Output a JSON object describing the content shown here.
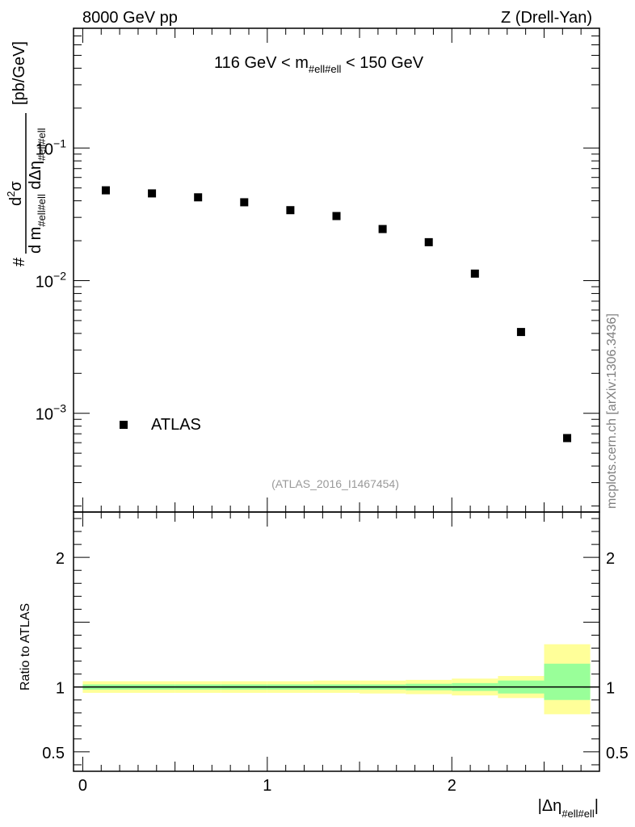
{
  "header": {
    "left": "8000 GeV pp",
    "right": "Z (Drell-Yan)"
  },
  "side_label": "mcplots.cern.ch [arXiv:1306.3436]",
  "analysis_tag": "(ATLAS_2016_I1467454)",
  "chart_data": [
    {
      "type": "scatter",
      "title": {
        "pre": "116 GeV < m",
        "sub": "#ell#ell",
        "post": " < 150 GeV"
      },
      "ylabel": {
        "hash": "#",
        "num": "d",
        "num_sup": "2",
        "num_sigma": "σ",
        "den_d": "d m",
        "den_sub": "#ell#ell",
        "den_deta": " dΔη",
        "den_eta_sub": "#ell#ell",
        "unit": "[pb/GeV]"
      },
      "yscale": "log",
      "ylim": [
        0.00018,
        0.8
      ],
      "xlim": [
        -0.05,
        2.8
      ],
      "y_ticks": [
        {
          "value": 0.1,
          "base": "10",
          "exp": "−1"
        },
        {
          "value": 0.01,
          "base": "10",
          "exp": "−2"
        },
        {
          "value": 0.001,
          "base": "10",
          "exp": "−3"
        }
      ],
      "series": [
        {
          "name": "ATLAS",
          "color": "#000000",
          "x": [
            0.125,
            0.375,
            0.625,
            0.875,
            1.125,
            1.375,
            1.625,
            1.875,
            2.125,
            2.375,
            2.625
          ],
          "y": [
            0.048,
            0.0455,
            0.0425,
            0.039,
            0.034,
            0.0307,
            0.0245,
            0.0195,
            0.0113,
            0.0041,
            0.00065
          ]
        }
      ],
      "legend": {
        "position": "bottom-left",
        "entries": [
          "ATLAS"
        ]
      }
    },
    {
      "type": "area",
      "ylabel": "Ratio to ATLAS",
      "xlabel": {
        "pre": "|Δη",
        "sub": "#ell#ell",
        "post": "|"
      },
      "ylim": [
        0.35,
        2.35
      ],
      "xlim": [
        -0.05,
        2.8
      ],
      "y_ticks": [
        {
          "value": 0.5,
          "label": "0.5"
        },
        {
          "value": 1,
          "label": "1"
        },
        {
          "value": 2,
          "label": "2"
        }
      ],
      "x_ticks": [
        {
          "value": 0,
          "label": "0"
        },
        {
          "value": 1,
          "label": "1"
        },
        {
          "value": 2,
          "label": "2"
        }
      ],
      "reference_line": 1,
      "bins": [
        0,
        0.25,
        0.5,
        0.75,
        1.0,
        1.25,
        1.5,
        1.75,
        2.0,
        2.25,
        2.5,
        2.75
      ],
      "band_inner": {
        "color": "#99ff99",
        "lo": [
          0.98,
          0.98,
          0.98,
          0.98,
          0.98,
          0.98,
          0.98,
          0.975,
          0.97,
          0.95,
          0.9
        ],
        "hi": [
          1.02,
          1.02,
          1.02,
          1.02,
          1.02,
          1.02,
          1.02,
          1.025,
          1.03,
          1.05,
          1.18
        ]
      },
      "band_outer": {
        "color": "#ffff99",
        "lo": [
          0.955,
          0.955,
          0.955,
          0.955,
          0.955,
          0.955,
          0.95,
          0.945,
          0.935,
          0.915,
          0.79
        ],
        "hi": [
          1.045,
          1.045,
          1.045,
          1.045,
          1.045,
          1.05,
          1.05,
          1.055,
          1.065,
          1.085,
          1.33
        ]
      }
    }
  ]
}
